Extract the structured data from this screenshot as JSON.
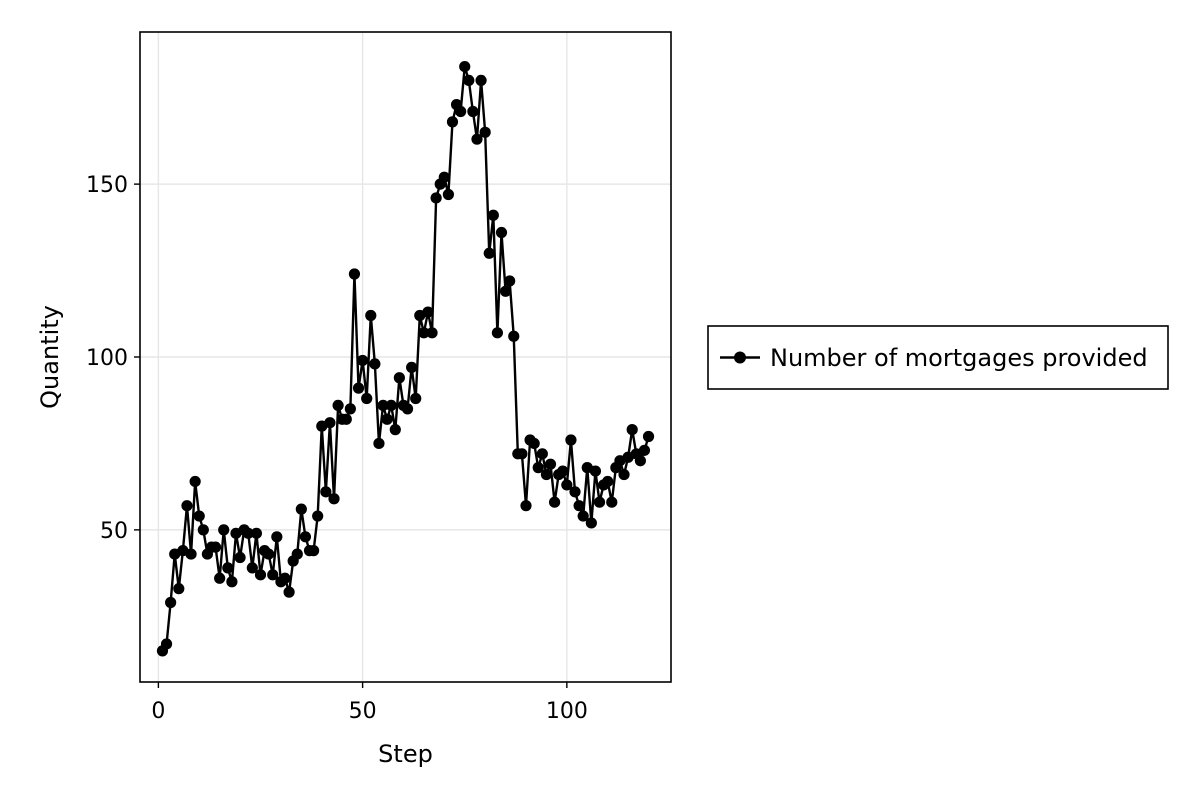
{
  "chart_data": {
    "type": "line",
    "title": "",
    "xlabel": "Step",
    "ylabel": "Quantity",
    "xlim": [
      -4.5,
      125.5
    ],
    "ylim": [
      6,
      194
    ],
    "xticks": [
      0,
      50,
      100
    ],
    "yticks": [
      50,
      100,
      150
    ],
    "grid": true,
    "legend_position": "right",
    "series": [
      {
        "name": "Number of mortgages provided",
        "color": "#000000",
        "marker": "circle",
        "x": [
          1,
          2,
          3,
          4,
          5,
          6,
          7,
          8,
          9,
          10,
          11,
          12,
          13,
          14,
          15,
          16,
          17,
          18,
          19,
          20,
          21,
          22,
          23,
          24,
          25,
          26,
          27,
          28,
          29,
          30,
          31,
          32,
          33,
          34,
          35,
          36,
          37,
          38,
          39,
          40,
          41,
          42,
          43,
          44,
          45,
          46,
          47,
          48,
          49,
          50,
          51,
          52,
          53,
          54,
          55,
          56,
          57,
          58,
          59,
          60,
          61,
          62,
          63,
          64,
          65,
          66,
          67,
          68,
          69,
          70,
          71,
          72,
          73,
          74,
          75,
          76,
          77,
          78,
          79,
          80,
          81,
          82,
          83,
          84,
          85,
          86,
          87,
          88,
          89,
          90,
          91,
          92,
          93,
          94,
          95,
          96,
          97,
          98,
          99,
          100,
          101,
          102,
          103,
          104,
          105,
          106,
          107,
          108,
          109,
          110,
          111,
          112,
          113,
          114,
          115,
          116,
          117,
          118,
          119,
          120
        ],
        "y": [
          15,
          17,
          29,
          43,
          33,
          44,
          57,
          43,
          64,
          54,
          50,
          43,
          45,
          45,
          36,
          50,
          39,
          35,
          49,
          42,
          50,
          49,
          39,
          49,
          37,
          44,
          43,
          37,
          48,
          35,
          36,
          32,
          41,
          43,
          56,
          48,
          44,
          44,
          54,
          80,
          61,
          81,
          59,
          86,
          82,
          82,
          85,
          124,
          91,
          99,
          88,
          112,
          98,
          75,
          86,
          82,
          86,
          79,
          94,
          86,
          85,
          97,
          88,
          112,
          107,
          113,
          107,
          146,
          150,
          152,
          147,
          168,
          173,
          171,
          184,
          180,
          171,
          163,
          180,
          165,
          130,
          141,
          107,
          136,
          119,
          122,
          106,
          72,
          72,
          57,
          76,
          75,
          68,
          72,
          66,
          69,
          58,
          66,
          67,
          63,
          76,
          61,
          57,
          54,
          68,
          52,
          67,
          58,
          63,
          64,
          58,
          68,
          70,
          66,
          71,
          79,
          72,
          70,
          73,
          77
        ]
      }
    ]
  }
}
